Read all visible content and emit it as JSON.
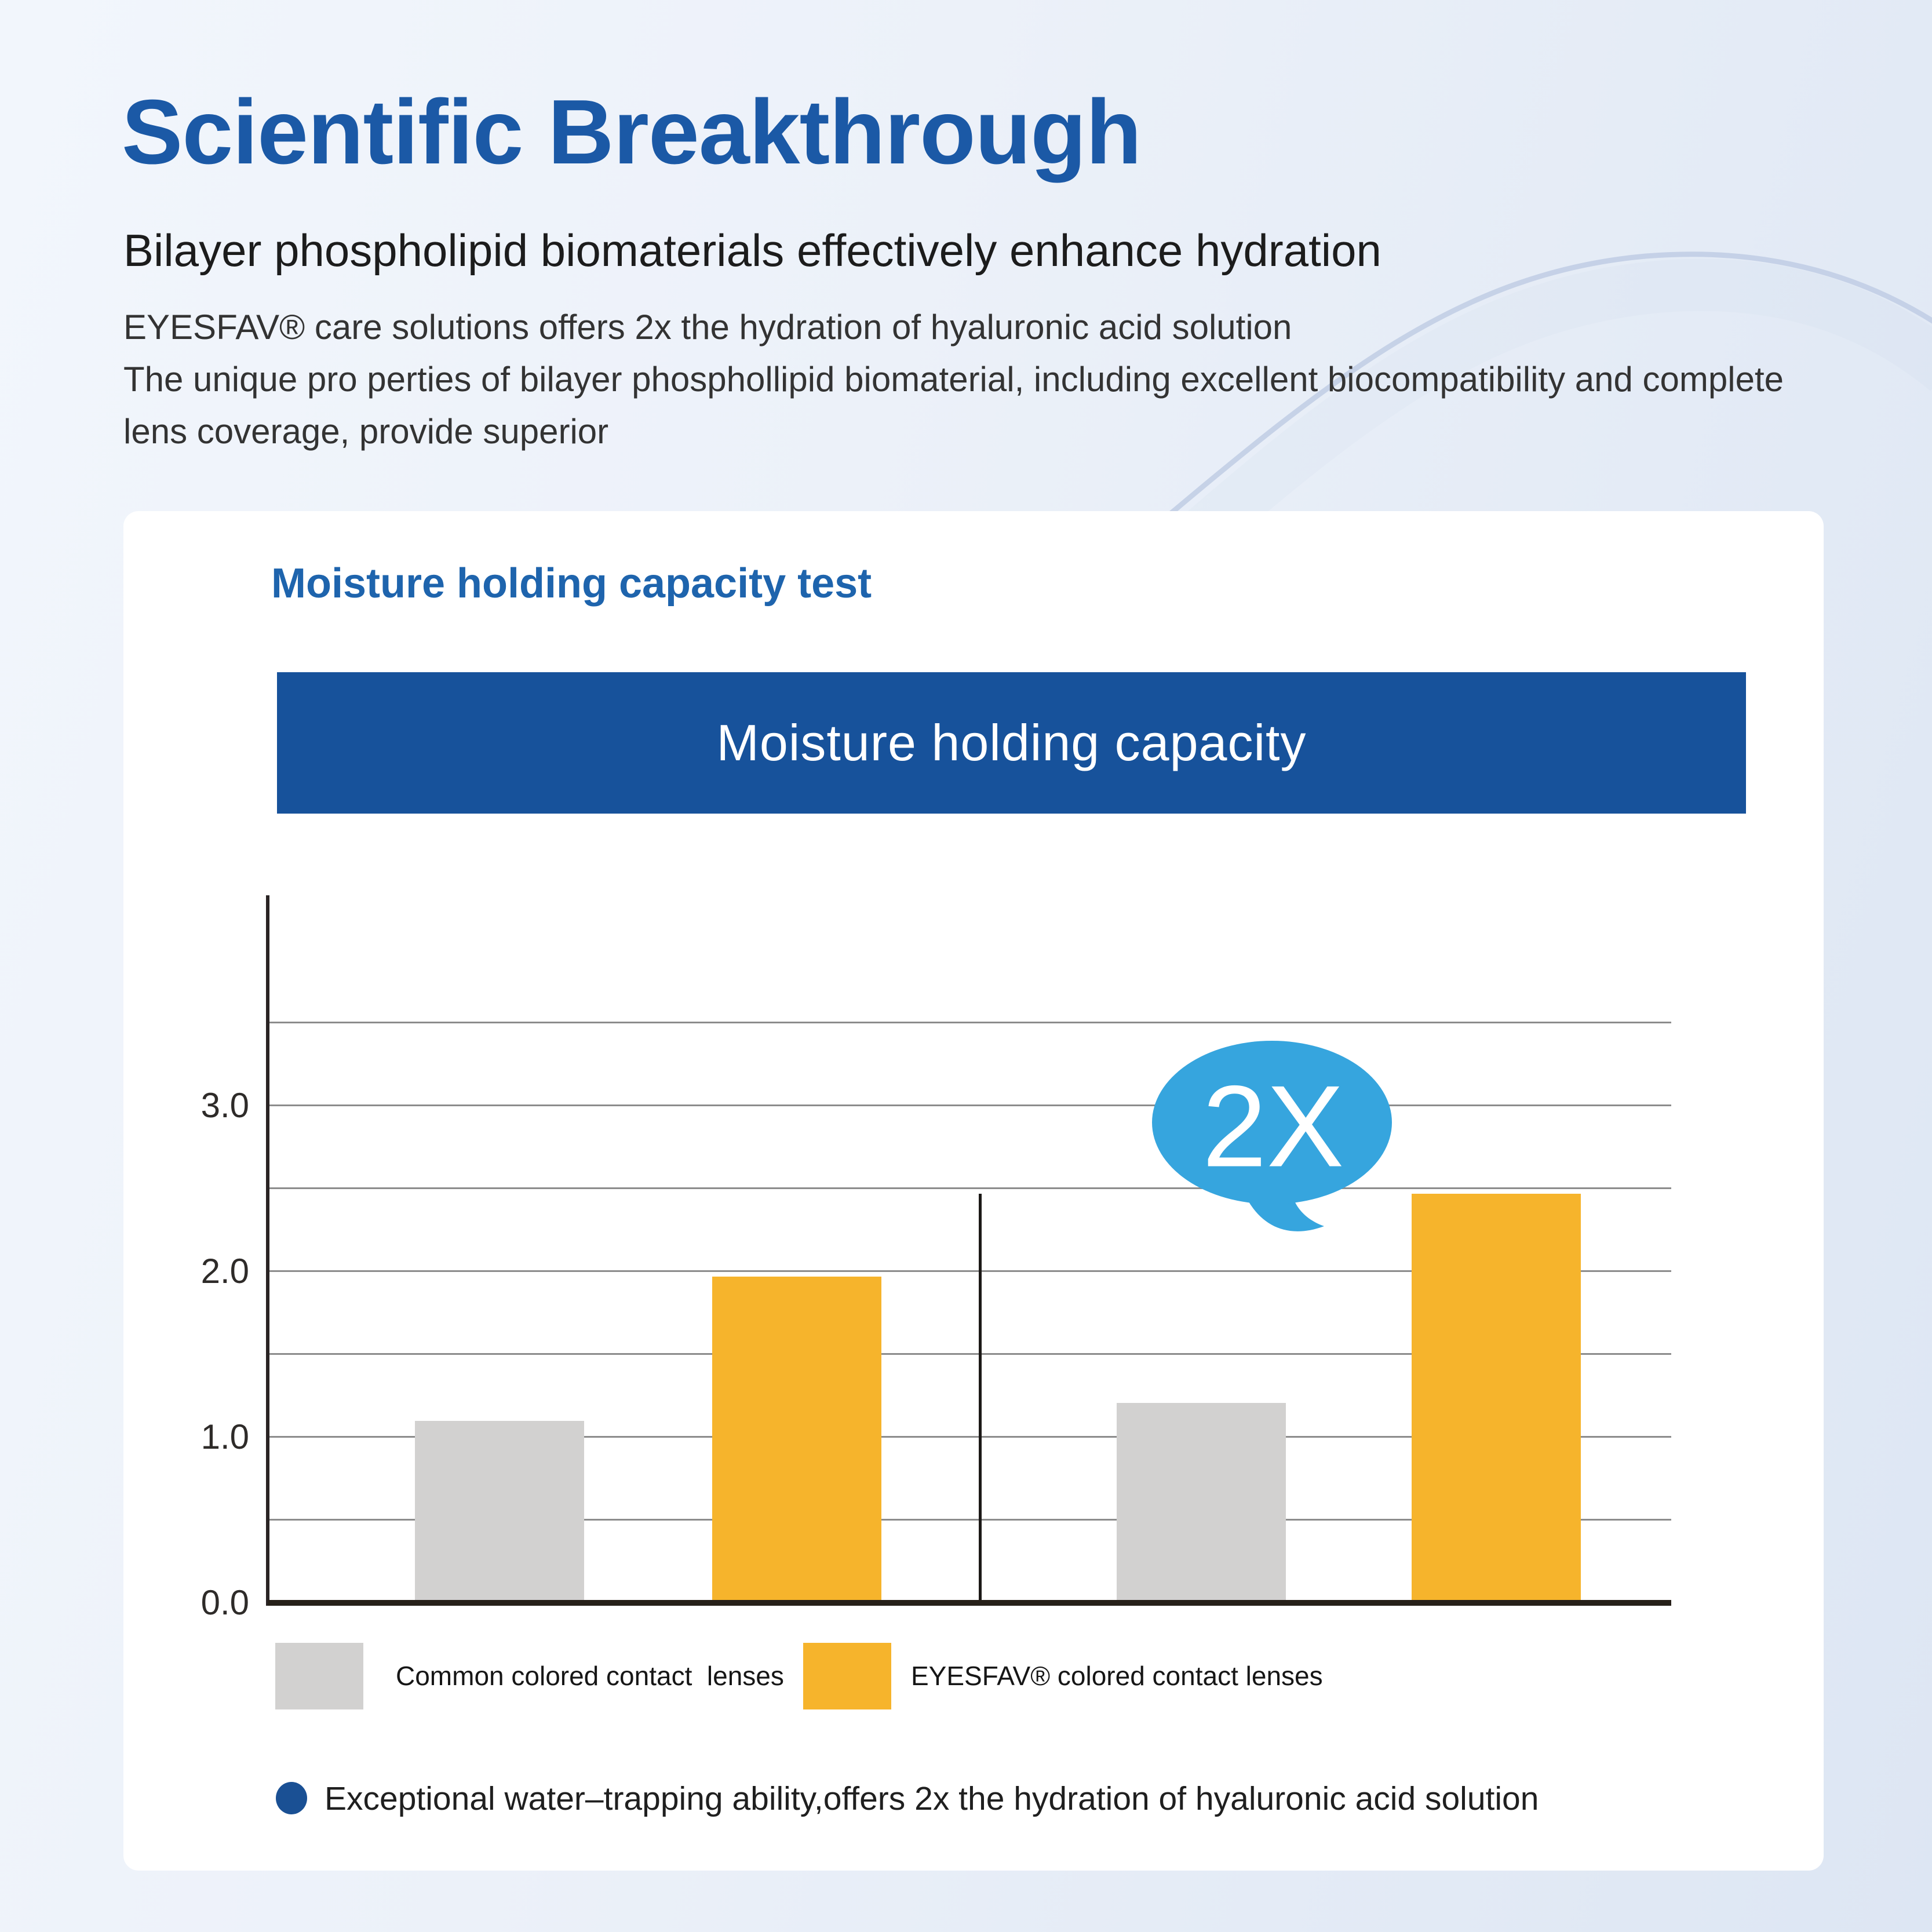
{
  "header": {
    "title": "Scientific Breakthrough",
    "subtitle": "Bilayer phospholipid biomaterials effectively enhance hydration",
    "paragraph_lines": [
      "EYESFAV® care solutions offers 2x the hydration of hyaluronic acid solution",
      "The unique pro perties of bilayer phosphollipid biomaterial, including excellent biocompatibility and complete",
      "lens coverage, provide superior"
    ]
  },
  "card": {
    "heading": "Moisture holding capacity test",
    "banner_title": "Moisture holding capacity",
    "note": "Exceptional water–trapping ability,offers 2x the hydration of hyaluronic acid solution"
  },
  "chart_data": {
    "type": "bar",
    "title": "Moisture holding capacity",
    "categories": [
      "",
      ""
    ],
    "series": [
      {
        "name": "Common colored contact  lenses",
        "color": "#d2d1d0",
        "values": [
          1.08,
          1.19
        ]
      },
      {
        "name": "EYESFAV® colored contact lenses",
        "color": "#f6b42c",
        "values": [
          1.95,
          2.45
        ]
      }
    ],
    "y_ticks": [
      0,
      1,
      2,
      3
    ],
    "y_tick_labels": [
      "0.0",
      "1.0",
      "2.0",
      "3.0"
    ],
    "ylim": [
      0,
      3.8
    ],
    "grid": true,
    "grid_step": 0.5,
    "grid_max": 3.5,
    "separator_between_groups": true,
    "annotation": {
      "text": "2X",
      "color": "#36a5de",
      "note": "EYESFAV bar of right group is ~2x the gray bar"
    },
    "legend_position": "bottom"
  },
  "colors": {
    "title_blue": "#1b59a6",
    "heading_blue": "#1e64ad",
    "banner_blue": "#17529b",
    "bubble_blue": "#36a5de",
    "bar_gray": "#d2d1d0",
    "bar_yellow": "#f6b42c",
    "bullet_blue": "#1a5094"
  }
}
